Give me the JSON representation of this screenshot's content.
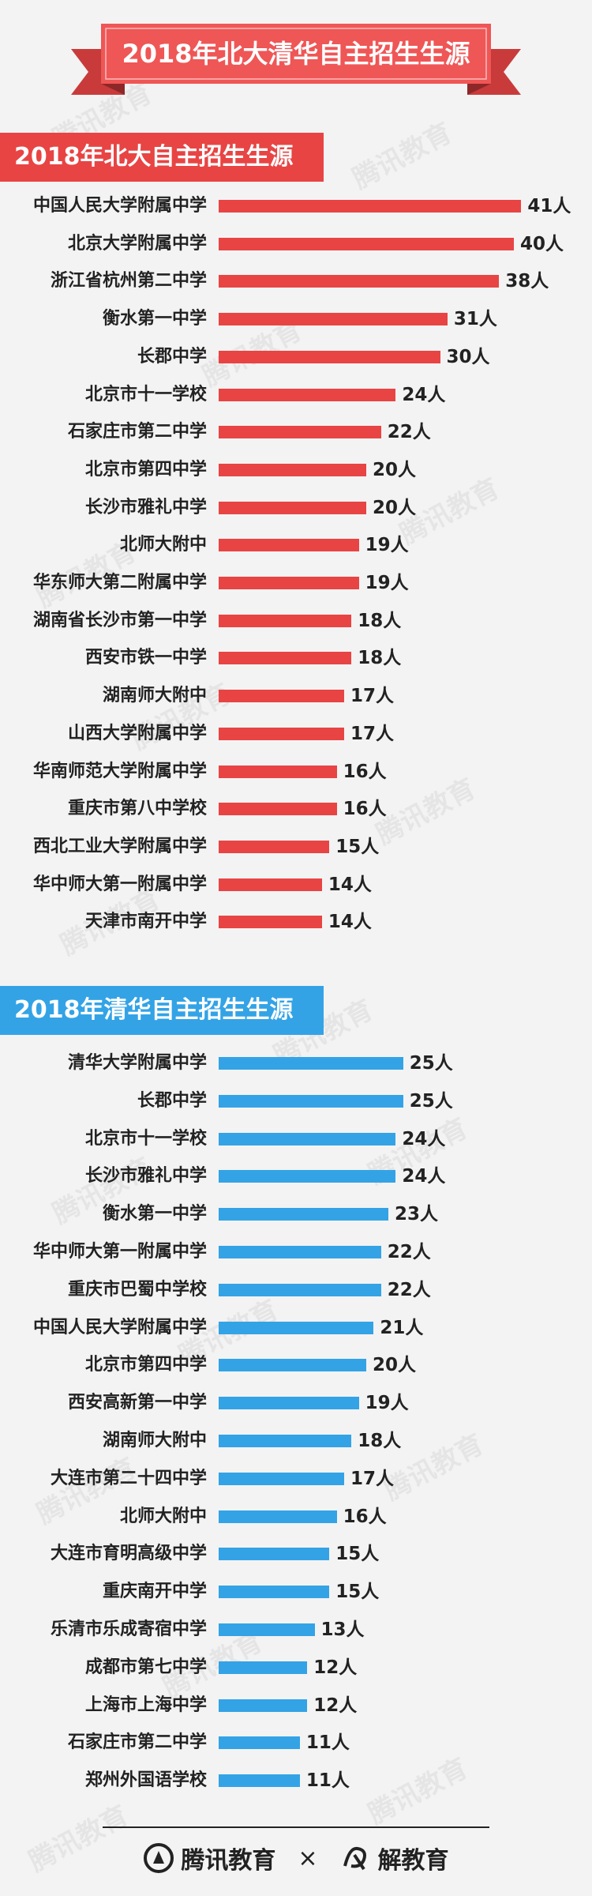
{
  "header": {
    "banner_title": "2018年北大清华自主招生生源"
  },
  "watermark": "腾讯教育",
  "colors": {
    "banner": "#ef5656",
    "banner_dark": "#c93b3b",
    "pku": "#e84444",
    "tsinghua": "#33a3e6"
  },
  "chart_data": [
    {
      "type": "bar",
      "orientation": "horizontal",
      "title": "2018年北大自主招生生源",
      "unit": "人",
      "categories": [
        "中国人民大学附属中学",
        "北京大学附属中学",
        "浙江省杭州第二中学",
        "衡水第一中学",
        "长郡中学",
        "北京市十一学校",
        "石家庄市第二中学",
        "北京市第四中学",
        "长沙市雅礼中学",
        "北师大附中",
        "华东师大第二附属中学",
        "湖南省长沙市第一中学",
        "西安市铁一中学",
        "湖南师大附中",
        "山西大学附属中学",
        "华南师范大学附属中学",
        "重庆市第八中学校",
        "西北工业大学附属中学",
        "华中师大第一附属中学",
        "天津市南开中学"
      ],
      "values": [
        41,
        40,
        38,
        31,
        30,
        24,
        22,
        20,
        20,
        19,
        19,
        18,
        18,
        17,
        17,
        16,
        16,
        15,
        14,
        14
      ],
      "labels": [
        "41人",
        "40人",
        "38人",
        "31人",
        "30人",
        "24人",
        "22人",
        "20人",
        "20人",
        "19人",
        "19人",
        "18人",
        "18人",
        "17人",
        "17人",
        "16人",
        "16人",
        "15人",
        "14人",
        "14人"
      ]
    },
    {
      "type": "bar",
      "orientation": "horizontal",
      "title": "2018年清华自主招生生源",
      "unit": "人",
      "categories": [
        "清华大学附属中学",
        "长郡中学",
        "北京市十一学校",
        "长沙市雅礼中学",
        "衡水第一中学",
        "华中师大第一附属中学",
        "重庆市巴蜀中学校",
        "中国人民大学附属中学",
        "北京市第四中学",
        "西安高新第一中学",
        "湖南师大附中",
        "大连市第二十四中学",
        "北师大附中",
        "大连市育明高级中学",
        "重庆南开中学",
        "乐清市乐成寄宿中学",
        "成都市第七中学",
        "上海市上海中学",
        "石家庄市第二中学",
        "郑州外国语学校"
      ],
      "values": [
        25,
        25,
        24,
        24,
        23,
        22,
        22,
        21,
        20,
        19,
        18,
        17,
        16,
        15,
        15,
        13,
        12,
        12,
        11,
        11
      ],
      "labels": [
        "25人",
        "25人",
        "24人",
        "24人",
        "23人",
        "22人",
        "22人",
        "21人",
        "20人",
        "19人",
        "18人",
        "17人",
        "16人",
        "15人",
        "15人",
        "13人",
        "12人",
        "12人",
        "11人",
        "11人"
      ]
    }
  ],
  "footer": {
    "brand_left": "腾讯教育",
    "separator": "×",
    "brand_right": "解教育"
  }
}
